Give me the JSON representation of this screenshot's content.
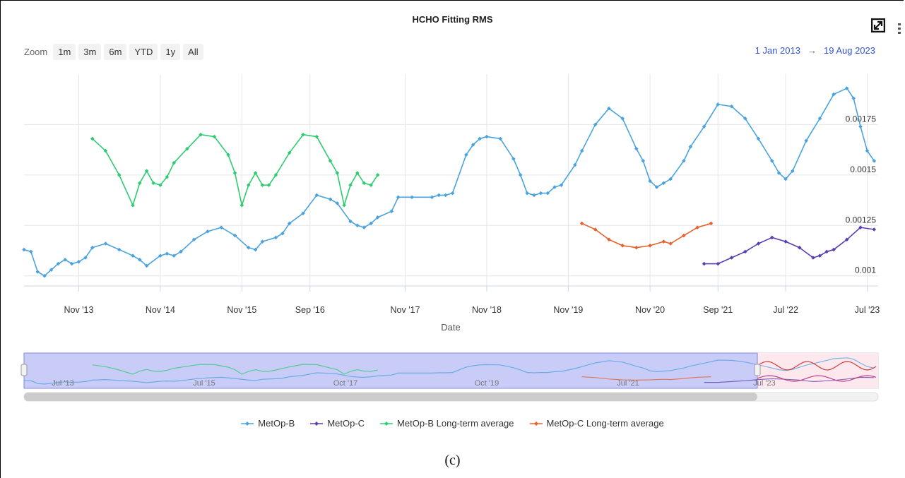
{
  "title": "HCHO Fitting RMS",
  "zoom": {
    "label": "Zoom",
    "buttons": [
      "1m",
      "3m",
      "6m",
      "YTD",
      "1y",
      "All"
    ]
  },
  "range": {
    "from": "1 Jan 2013",
    "arrow": "→",
    "to": "19 Aug 2023"
  },
  "caption": "(c)",
  "colors": {
    "metop_b": "#4aa3df",
    "metop_c": "#5a3fb0",
    "metop_b_avg": "#2ecc71",
    "metop_c_avg": "#e8602c"
  },
  "navigator": {
    "tick_labels": [
      "Jul '13",
      "Jul '15",
      "Oct '17",
      "Oct '19",
      "Jul '21",
      "Jul '23"
    ]
  },
  "chart_data": {
    "type": "line",
    "title": "HCHO Fitting RMS",
    "xlabel": "Date",
    "ylabel": "",
    "x_tick_labels": [
      "Nov '13",
      "Nov '14",
      "Nov '15",
      "Sep '16",
      "Nov '17",
      "Nov '18",
      "Nov '19",
      "Nov '20",
      "Sep '21",
      "Jul '22",
      "Jul '23"
    ],
    "y_tick_labels": [
      "0.00175",
      "0.0015",
      "0.00125",
      "0.001"
    ],
    "ylim": [
      0.00095,
      0.002
    ],
    "xlim": [
      "2013-03-01",
      "2023-08-19"
    ],
    "legend_position": "bottom",
    "grid": true,
    "series": [
      {
        "name": "MetOp-B",
        "points": [
          [
            "2013-03-01",
            0.00113
          ],
          [
            "2013-04-01",
            0.00112
          ],
          [
            "2013-05-01",
            0.00102
          ],
          [
            "2013-06-01",
            0.001
          ],
          [
            "2013-07-01",
            0.00103
          ],
          [
            "2013-08-01",
            0.00106
          ],
          [
            "2013-09-01",
            0.00108
          ],
          [
            "2013-10-01",
            0.00106
          ],
          [
            "2013-11-01",
            0.00107
          ],
          [
            "2013-12-01",
            0.00109
          ],
          [
            "2014-01-01",
            0.00114
          ],
          [
            "2014-03-01",
            0.00116
          ],
          [
            "2014-05-01",
            0.00113
          ],
          [
            "2014-07-01",
            0.0011
          ],
          [
            "2014-08-01",
            0.00108
          ],
          [
            "2014-09-01",
            0.00105
          ],
          [
            "2014-11-01",
            0.0011
          ],
          [
            "2014-12-01",
            0.00111
          ],
          [
            "2015-01-01",
            0.0011
          ],
          [
            "2015-02-01",
            0.00112
          ],
          [
            "2015-04-01",
            0.00118
          ],
          [
            "2015-06-01",
            0.00122
          ],
          [
            "2015-08-01",
            0.00124
          ],
          [
            "2015-10-01",
            0.0012
          ],
          [
            "2015-12-01",
            0.00114
          ],
          [
            "2016-01-01",
            0.00113
          ],
          [
            "2016-02-01",
            0.00117
          ],
          [
            "2016-04-01",
            0.00119
          ],
          [
            "2016-05-01",
            0.00121
          ],
          [
            "2016-06-01",
            0.00126
          ],
          [
            "2016-08-01",
            0.00131
          ],
          [
            "2016-10-01",
            0.0014
          ],
          [
            "2016-12-01",
            0.00138
          ],
          [
            "2017-01-01",
            0.00136
          ],
          [
            "2017-03-01",
            0.00127
          ],
          [
            "2017-04-01",
            0.00125
          ],
          [
            "2017-05-01",
            0.00124
          ],
          [
            "2017-06-01",
            0.00126
          ],
          [
            "2017-07-01",
            0.00129
          ],
          [
            "2017-09-01",
            0.00132
          ],
          [
            "2017-10-01",
            0.00139
          ],
          [
            "2017-12-01",
            0.00139
          ],
          [
            "2018-03-01",
            0.00139
          ],
          [
            "2018-04-01",
            0.0014
          ],
          [
            "2018-05-01",
            0.0014
          ],
          [
            "2018-06-01",
            0.00141
          ],
          [
            "2018-08-01",
            0.0016
          ],
          [
            "2018-09-01",
            0.00165
          ],
          [
            "2018-10-01",
            0.00168
          ],
          [
            "2018-11-01",
            0.00169
          ],
          [
            "2019-01-01",
            0.00168
          ],
          [
            "2019-03-01",
            0.00158
          ],
          [
            "2019-04-01",
            0.0015
          ],
          [
            "2019-05-01",
            0.00141
          ],
          [
            "2019-06-01",
            0.0014
          ],
          [
            "2019-07-01",
            0.00141
          ],
          [
            "2019-08-01",
            0.00141
          ],
          [
            "2019-09-01",
            0.00144
          ],
          [
            "2019-10-01",
            0.00145
          ],
          [
            "2019-12-01",
            0.00155
          ],
          [
            "2020-01-01",
            0.00162
          ],
          [
            "2020-03-01",
            0.00175
          ],
          [
            "2020-05-01",
            0.00183
          ],
          [
            "2020-07-01",
            0.00178
          ],
          [
            "2020-09-01",
            0.00163
          ],
          [
            "2020-10-01",
            0.00157
          ],
          [
            "2020-11-01",
            0.00147
          ],
          [
            "2020-12-01",
            0.00144
          ],
          [
            "2021-01-01",
            0.00146
          ],
          [
            "2021-02-01",
            0.00148
          ],
          [
            "2021-04-01",
            0.00157
          ],
          [
            "2021-05-01",
            0.00164
          ],
          [
            "2021-07-01",
            0.00174
          ],
          [
            "2021-09-01",
            0.00185
          ],
          [
            "2021-11-01",
            0.00184
          ],
          [
            "2022-01-01",
            0.00178
          ],
          [
            "2022-03-01",
            0.00168
          ],
          [
            "2022-05-01",
            0.00157
          ],
          [
            "2022-06-01",
            0.00151
          ],
          [
            "2022-07-01",
            0.00148
          ],
          [
            "2022-08-01",
            0.00152
          ],
          [
            "2022-10-01",
            0.00167
          ],
          [
            "2022-12-01",
            0.00178
          ],
          [
            "2023-02-01",
            0.0019
          ],
          [
            "2023-04-01",
            0.00193
          ],
          [
            "2023-05-01",
            0.00188
          ],
          [
            "2023-06-01",
            0.00174
          ],
          [
            "2023-07-01",
            0.00162
          ],
          [
            "2023-08-01",
            0.00157
          ]
        ]
      },
      {
        "name": "MetOp-C",
        "points": [
          [
            "2021-07-01",
            0.00106
          ],
          [
            "2021-09-01",
            0.00106
          ],
          [
            "2021-11-01",
            0.00109
          ],
          [
            "2022-01-01",
            0.00112
          ],
          [
            "2022-03-01",
            0.00116
          ],
          [
            "2022-05-01",
            0.00119
          ],
          [
            "2022-07-01",
            0.00117
          ],
          [
            "2022-09-01",
            0.00114
          ],
          [
            "2022-11-01",
            0.00109
          ],
          [
            "2022-12-01",
            0.0011
          ],
          [
            "2023-01-01",
            0.00112
          ],
          [
            "2023-02-01",
            0.00113
          ],
          [
            "2023-04-01",
            0.00118
          ],
          [
            "2023-06-01",
            0.00124
          ],
          [
            "2023-08-01",
            0.00123
          ]
        ]
      },
      {
        "name": "MetOp-B Long-term average",
        "points": [
          [
            "2014-01-01",
            0.00168
          ],
          [
            "2014-03-01",
            0.00162
          ],
          [
            "2014-05-01",
            0.0015
          ],
          [
            "2014-07-01",
            0.00135
          ],
          [
            "2014-08-01",
            0.00146
          ],
          [
            "2014-09-01",
            0.00152
          ],
          [
            "2014-10-01",
            0.00146
          ],
          [
            "2014-11-01",
            0.00145
          ],
          [
            "2014-12-01",
            0.00149
          ],
          [
            "2015-01-01",
            0.00156
          ],
          [
            "2015-03-01",
            0.00163
          ],
          [
            "2015-05-01",
            0.0017
          ],
          [
            "2015-07-01",
            0.00169
          ],
          [
            "2015-09-01",
            0.0016
          ],
          [
            "2015-10-01",
            0.00151
          ],
          [
            "2015-11-01",
            0.00135
          ],
          [
            "2015-12-01",
            0.00145
          ],
          [
            "2016-01-01",
            0.00151
          ],
          [
            "2016-02-01",
            0.00145
          ],
          [
            "2016-03-01",
            0.00145
          ],
          [
            "2016-04-01",
            0.0015
          ],
          [
            "2016-06-01",
            0.00161
          ],
          [
            "2016-08-01",
            0.0017
          ],
          [
            "2016-10-01",
            0.00169
          ],
          [
            "2016-12-01",
            0.00157
          ],
          [
            "2017-01-01",
            0.00151
          ],
          [
            "2017-02-01",
            0.00135
          ],
          [
            "2017-03-01",
            0.00145
          ],
          [
            "2017-04-01",
            0.00151
          ],
          [
            "2017-05-01",
            0.00146
          ],
          [
            "2017-06-01",
            0.00145
          ],
          [
            "2017-07-01",
            0.0015
          ]
        ]
      },
      {
        "name": "MetOp-C Long-term average",
        "points": [
          [
            "2020-01-01",
            0.00126
          ],
          [
            "2020-03-01",
            0.00123
          ],
          [
            "2020-05-01",
            0.00118
          ],
          [
            "2020-07-01",
            0.00115
          ],
          [
            "2020-09-01",
            0.00114
          ],
          [
            "2020-11-01",
            0.00115
          ],
          [
            "2021-01-01",
            0.00117
          ],
          [
            "2021-02-01",
            0.00116
          ],
          [
            "2021-04-01",
            0.0012
          ],
          [
            "2021-06-01",
            0.00124
          ],
          [
            "2021-08-01",
            0.00126
          ]
        ]
      }
    ]
  },
  "legend": [
    {
      "label": "MetOp-B",
      "color_key": "metop_b"
    },
    {
      "label": "MetOp-C",
      "color_key": "metop_c"
    },
    {
      "label": "MetOp-B Long-term average",
      "color_key": "metop_b_avg"
    },
    {
      "label": "MetOp-C Long-term average",
      "color_key": "metop_c_avg"
    }
  ]
}
